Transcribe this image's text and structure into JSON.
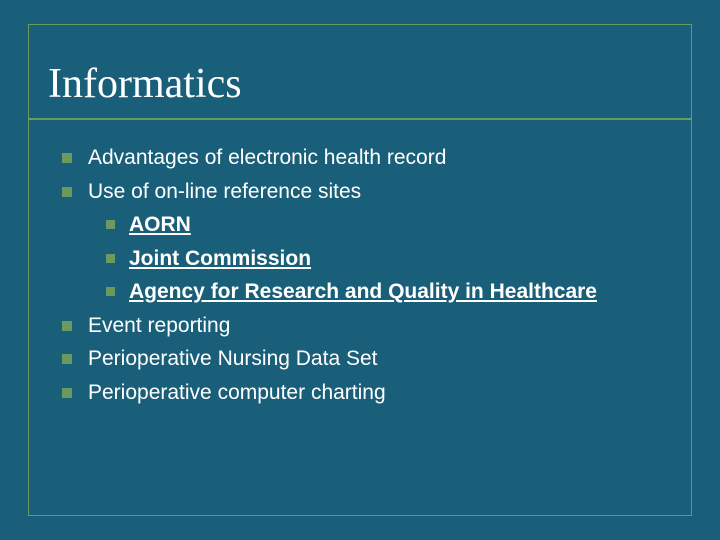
{
  "slide": {
    "background_color": "#1a5f7a",
    "border_color": "#6b9960",
    "title": {
      "text": "Informatics",
      "font_family": "Times New Roman",
      "font_size": 42,
      "color": "#ffffff"
    },
    "body_font_size": 21,
    "body_color": "#ffffff",
    "bullet_color": "#6b9960",
    "items": [
      {
        "text": "Advantages of electronic health record"
      },
      {
        "text": "Use of on-line reference sites"
      }
    ],
    "sub_items": [
      {
        "text": "AORN",
        "link": true,
        "pad": " "
      },
      {
        "text": "Joint Commission",
        "link": true,
        "pad": ""
      },
      {
        "text": "Agency for Research and Quality in Healthcare",
        "link": true,
        "pad": ""
      }
    ],
    "items_after": [
      {
        "text": "Event reporting"
      },
      {
        "text": "Perioperative Nursing Data Set"
      },
      {
        "text": "Perioperative computer charting"
      }
    ]
  }
}
